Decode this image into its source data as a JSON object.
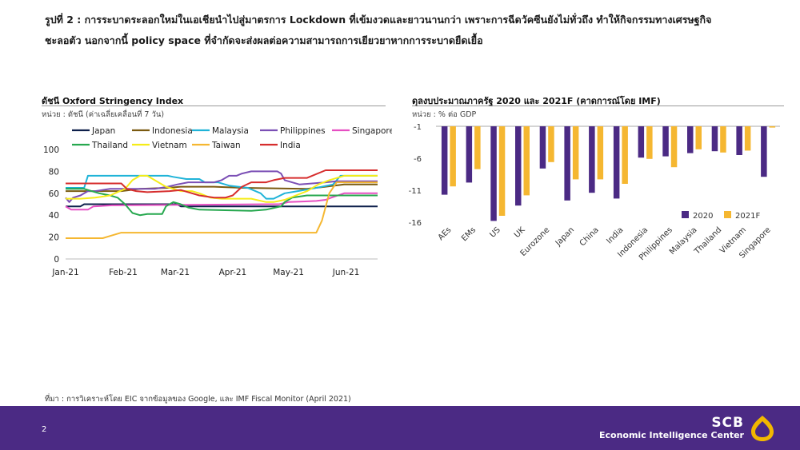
{
  "title_line1": "รูปที่ 2 : การระบาดระลอกใหม่ในเอเชียนำไปสู่มาตรการ Lockdown ที่เข้มงวดและยาวนานกว่า เพราะการฉีดวัคซีนยังไม่ทั่วถึง ทำให้กิจกรรมทางเศรษฐกิจ",
  "title_line2": "ชะลอตัว นอกจากนี้ policy space ที่จำกัดจะส่งผลต่อความสามารถการเยียวยาหากการระบาดยืดเยื้อ",
  "source": "ที่มา : การวิเคราะห์โดย EIC จากข้อมูลของ Google, และ IMF Fiscal Monitor (April 2021)",
  "footer": {
    "page": "2",
    "brand": "SCB",
    "brand_sub": "Economic Intelligence Center"
  },
  "colors": {
    "footer": "#4b2a84",
    "logo": "#f2b800"
  },
  "chart_data": [
    {
      "type": "line",
      "title": "ดัชนี Oxford Stringency Index",
      "subtitle": "หน่วย : ดัชนี (ค่าเฉลี่ยเคลื่อนที่ 7 วัน)",
      "x_ticks": [
        "Jan-21",
        "Feb-21",
        "Mar-21",
        "Apr-21",
        "May-21",
        "Jun-21"
      ],
      "x_tick_pos": [
        0,
        31,
        59,
        90,
        120,
        151
      ],
      "x_range": [
        0,
        168
      ],
      "ylim": [
        0,
        100
      ],
      "y_ticks": [
        0,
        20,
        40,
        60,
        80,
        100
      ],
      "legend_position": "top",
      "series": [
        {
          "name": "Japan",
          "color": "#0d1f4a",
          "points": [
            [
              0,
              48
            ],
            [
              8,
              48
            ],
            [
              10,
              50
            ],
            [
              60,
              50
            ],
            [
              62,
              48
            ],
            [
              168,
              48
            ]
          ]
        },
        {
          "name": "Indonesia",
          "color": "#7a5a10",
          "points": [
            [
              0,
              62
            ],
            [
              30,
              62
            ],
            [
              40,
              64
            ],
            [
              55,
              65
            ],
            [
              62,
              66
            ],
            [
              80,
              66
            ],
            [
              95,
              65
            ],
            [
              130,
              64
            ],
            [
              140,
              66
            ],
            [
              150,
              68
            ],
            [
              168,
              68
            ]
          ]
        },
        {
          "name": "Malaysia",
          "color": "#1fb3d8",
          "points": [
            [
              0,
              65
            ],
            [
              10,
              65
            ],
            [
              12,
              76
            ],
            [
              48,
              76
            ],
            [
              55,
              76
            ],
            [
              58,
              75
            ],
            [
              65,
              73
            ],
            [
              72,
              73
            ],
            [
              75,
              70
            ],
            [
              82,
              70
            ],
            [
              88,
              67
            ],
            [
              98,
              65
            ],
            [
              105,
              60
            ],
            [
              108,
              55
            ],
            [
              112,
              55
            ],
            [
              118,
              60
            ],
            [
              125,
              62
            ],
            [
              132,
              64
            ],
            [
              138,
              66
            ],
            [
              144,
              68
            ],
            [
              148,
              76
            ],
            [
              168,
              76
            ]
          ]
        },
        {
          "name": "Philippines",
          "color": "#7b4fb5",
          "points": [
            [
              0,
              56
            ],
            [
              2,
              52
            ],
            [
              4,
              56
            ],
            [
              8,
              58
            ],
            [
              12,
              62
            ],
            [
              16,
              62
            ],
            [
              24,
              64
            ],
            [
              34,
              64
            ],
            [
              48,
              64
            ],
            [
              55,
              66
            ],
            [
              60,
              68
            ],
            [
              66,
              70
            ],
            [
              72,
              70
            ],
            [
              80,
              70
            ],
            [
              84,
              72
            ],
            [
              88,
              76
            ],
            [
              92,
              76
            ],
            [
              95,
              78
            ],
            [
              100,
              80
            ],
            [
              114,
              80
            ],
            [
              116,
              78
            ],
            [
              118,
              72
            ],
            [
              126,
              68
            ],
            [
              140,
              70
            ],
            [
              146,
              71
            ],
            [
              168,
              71
            ]
          ]
        },
        {
          "name": "Singapore",
          "color": "#e64fc2",
          "points": [
            [
              0,
              48
            ],
            [
              3,
              45
            ],
            [
              12,
              45
            ],
            [
              15,
              48
            ],
            [
              25,
              49
            ],
            [
              110,
              50
            ],
            [
              115,
              50
            ],
            [
              120,
              52
            ],
            [
              135,
              53
            ],
            [
              140,
              54
            ],
            [
              143,
              56
            ],
            [
              150,
              60
            ],
            [
              168,
              60
            ]
          ]
        },
        {
          "name": "Thailand",
          "color": "#27a84f",
          "points": [
            [
              0,
              64
            ],
            [
              10,
              64
            ],
            [
              14,
              62
            ],
            [
              18,
              60
            ],
            [
              24,
              58
            ],
            [
              28,
              56
            ],
            [
              32,
              50
            ],
            [
              36,
              42
            ],
            [
              40,
              40
            ],
            [
              44,
              41
            ],
            [
              52,
              41
            ],
            [
              54,
              48
            ],
            [
              58,
              52
            ],
            [
              62,
              50
            ],
            [
              66,
              47
            ],
            [
              72,
              45
            ],
            [
              100,
              44
            ],
            [
              108,
              45
            ],
            [
              116,
              48
            ],
            [
              118,
              52
            ],
            [
              122,
              56
            ],
            [
              130,
              58
            ],
            [
              168,
              58
            ]
          ]
        },
        {
          "name": "Vietnam",
          "color": "#f5ec18",
          "points": [
            [
              0,
              55
            ],
            [
              8,
              55
            ],
            [
              16,
              56
            ],
            [
              24,
              58
            ],
            [
              32,
              64
            ],
            [
              36,
              72
            ],
            [
              40,
              76
            ],
            [
              44,
              76
            ],
            [
              48,
              72
            ],
            [
              54,
              66
            ],
            [
              58,
              64
            ],
            [
              62,
              62
            ],
            [
              68,
              62
            ],
            [
              72,
              60
            ],
            [
              78,
              56
            ],
            [
              84,
              55
            ],
            [
              92,
              55
            ],
            [
              100,
              55
            ],
            [
              108,
              52
            ],
            [
              112,
              52
            ],
            [
              118,
              54
            ],
            [
              124,
              58
            ],
            [
              130,
              62
            ],
            [
              136,
              68
            ],
            [
              142,
              72
            ],
            [
              150,
              76
            ],
            [
              168,
              76
            ]
          ]
        },
        {
          "name": "Taiwan",
          "color": "#f5b731",
          "points": [
            [
              0,
              19
            ],
            [
              20,
              19
            ],
            [
              24,
              21
            ],
            [
              30,
              24
            ],
            [
              135,
              24
            ],
            [
              138,
              35
            ],
            [
              142,
              60
            ],
            [
              146,
              70
            ],
            [
              150,
              70
            ],
            [
              168,
              70
            ]
          ]
        },
        {
          "name": "India",
          "color": "#d62d2d",
          "points": [
            [
              0,
              69
            ],
            [
              30,
              69
            ],
            [
              33,
              64
            ],
            [
              38,
              62
            ],
            [
              44,
              61
            ],
            [
              56,
              62
            ],
            [
              62,
              63
            ],
            [
              68,
              60
            ],
            [
              72,
              58
            ],
            [
              80,
              56
            ],
            [
              86,
              56
            ],
            [
              90,
              58
            ],
            [
              95,
              66
            ],
            [
              100,
              70
            ],
            [
              108,
              70
            ],
            [
              112,
              72
            ],
            [
              118,
              74
            ],
            [
              130,
              74
            ],
            [
              140,
              81
            ],
            [
              168,
              81
            ]
          ]
        }
      ]
    },
    {
      "type": "bar",
      "title": "ดุลงบประมาณภาครัฐ 2020 และ 2021F (คาดการณ์โดย IMF)",
      "subtitle": "หน่วย : % ต่อ GDP",
      "categories": [
        "AEs",
        "EMs",
        "US",
        "UK",
        "Eurozone",
        "Japan",
        "China",
        "India",
        "Indonesia",
        "Philippines",
        "Malaysia",
        "Thailand",
        "Vietnam",
        "Singapore"
      ],
      "ylim": [
        -16,
        -1
      ],
      "y_ticks": [
        -1,
        -6,
        -11,
        -16
      ],
      "legend_position": "bottom-right",
      "series": [
        {
          "name": "2020",
          "color": "#4b2a84",
          "values": [
            -11.7,
            -9.8,
            -15.8,
            -13.4,
            -7.6,
            -12.6,
            -11.4,
            -12.3,
            -5.9,
            -5.7,
            -5.2,
            -4.9,
            -5.5,
            -8.9
          ]
        },
        {
          "name": "2021F",
          "color": "#f5b731",
          "values": [
            -10.4,
            -7.7,
            -15.0,
            -11.8,
            -6.6,
            -9.3,
            -9.3,
            -10.0,
            -6.1,
            -7.4,
            -4.6,
            -5.1,
            -4.8,
            -1.2
          ]
        }
      ]
    }
  ]
}
